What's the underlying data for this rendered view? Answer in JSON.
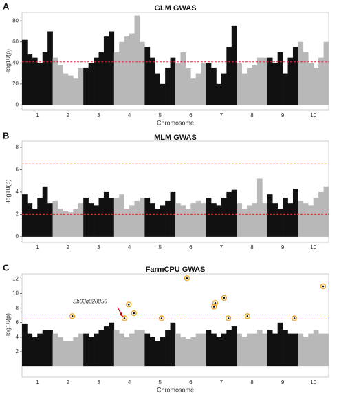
{
  "chart_data": [
    {
      "type": "manhattan",
      "panel": "A",
      "title": "GLM GWAS",
      "xlabel": "Chromosome",
      "ylabel": "-log10(p)",
      "categories": [
        "1",
        "2",
        "3",
        "4",
        "5",
        "6",
        "7",
        "8",
        "9",
        "10"
      ],
      "colors": [
        "#111111",
        "#b8b8b8"
      ],
      "values": [
        [
          62,
          48,
          45,
          40,
          50,
          70
        ],
        [
          45,
          38,
          30,
          28,
          25,
          35
        ],
        [
          35,
          40,
          45,
          50,
          65,
          70
        ],
        [
          50,
          60,
          65,
          68,
          85,
          60
        ],
        [
          55,
          45,
          30,
          20,
          35,
          45
        ],
        [
          40,
          50,
          35,
          25,
          30,
          40
        ],
        [
          40,
          35,
          20,
          30,
          55,
          75
        ],
        [
          40,
          30,
          35,
          38,
          45,
          45
        ],
        [
          45,
          40,
          50,
          30,
          45,
          55
        ],
        [
          60,
          50,
          40,
          35,
          45,
          60
        ]
      ],
      "xlim": [
        0,
        10
      ],
      "ylim": [
        -5,
        88
      ],
      "yticks": [
        0,
        20,
        40,
        60,
        80
      ],
      "thresholds": [
        {
          "value": 41,
          "color": "#e03030"
        }
      ]
    },
    {
      "type": "manhattan",
      "panel": "B",
      "title": "MLM GWAS",
      "ylabel": "-log10(p)",
      "categories": [
        "1",
        "2",
        "3",
        "4",
        "5",
        "6",
        "7",
        "8",
        "9",
        "10"
      ],
      "colors": [
        "#111111",
        "#b8b8b8"
      ],
      "values": [
        [
          3.8,
          3,
          2.5,
          3.5,
          4.5,
          3
        ],
        [
          3.2,
          2.5,
          2.3,
          2.2,
          2.5,
          3
        ],
        [
          3.5,
          3,
          2.8,
          3.5,
          4,
          3.5
        ],
        [
          3.5,
          3.8,
          2.5,
          2.8,
          3.2,
          3.5
        ],
        [
          3.5,
          3,
          2.5,
          2.8,
          3.2,
          4
        ],
        [
          3,
          2.8,
          2.5,
          3,
          3.2,
          3
        ],
        [
          3.5,
          3,
          2.8,
          3.5,
          4,
          4.2
        ],
        [
          3,
          2.5,
          2.8,
          3,
          5.2,
          3
        ],
        [
          3.8,
          3,
          2.5,
          3.5,
          3,
          4.3
        ],
        [
          3.2,
          3,
          2.8,
          3.5,
          4,
          4.5
        ]
      ],
      "xlim": [
        0,
        10
      ],
      "ylim": [
        -0.5,
        8.55
      ],
      "yticks": [
        0,
        2,
        4,
        6,
        8
      ],
      "thresholds": [
        {
          "value": 2,
          "color": "#e03030"
        },
        {
          "value": 6.5,
          "color": "#f0a020"
        }
      ]
    },
    {
      "type": "manhattan",
      "panel": "C",
      "title": "FarmCPU GWAS",
      "xlabel": "Chromosome",
      "ylabel": "-log10(p)",
      "categories": [
        "1",
        "2",
        "3",
        "4",
        "5",
        "6",
        "7",
        "8",
        "9",
        "10"
      ],
      "colors": [
        "#111111",
        "#b8b8b8"
      ],
      "values": [
        [
          5.8,
          4.5,
          4,
          4.5,
          5,
          5
        ],
        [
          4.5,
          4,
          3.5,
          3.5,
          4,
          4.5
        ],
        [
          4.5,
          4,
          4.5,
          5,
          5.5,
          6
        ],
        [
          5,
          4.5,
          4,
          4.5,
          5,
          5
        ],
        [
          4.5,
          4,
          3.5,
          4,
          5,
          6
        ],
        [
          4.5,
          4,
          3.8,
          4,
          4.5,
          4.5
        ],
        [
          5,
          4.5,
          4,
          4.5,
          5,
          5.5
        ],
        [
          4.5,
          4,
          4.5,
          4.5,
          5,
          4.5
        ],
        [
          5,
          4.5,
          6,
          5,
          4.5,
          4.5
        ],
        [
          4.5,
          4,
          4.5,
          5,
          4.5,
          4.5
        ]
      ],
      "xlim": [
        0,
        10
      ],
      "ylim": [
        -1.5,
        12.7
      ],
      "yticks": [
        2,
        4,
        6,
        8,
        10,
        12
      ],
      "thresholds": [
        {
          "value": 6.5,
          "color": "#f0a020"
        }
      ],
      "highlights": {
        "color": "#f0a020",
        "x": [
          1.64,
          3.34,
          3.48,
          3.65,
          4.55,
          5.38,
          6.26,
          6.3,
          6.59,
          6.73,
          7.35,
          8.88,
          9.82
        ],
        "y": [
          6.9,
          6.6,
          8.5,
          7.3,
          6.6,
          12.1,
          8.2,
          8.7,
          9.4,
          6.6,
          6.9,
          6.6,
          11.0
        ],
        "labels": [
          null,
          "Sb03g028850",
          null,
          null,
          null,
          null,
          null,
          null,
          null,
          null,
          null,
          null,
          null
        ]
      }
    }
  ]
}
